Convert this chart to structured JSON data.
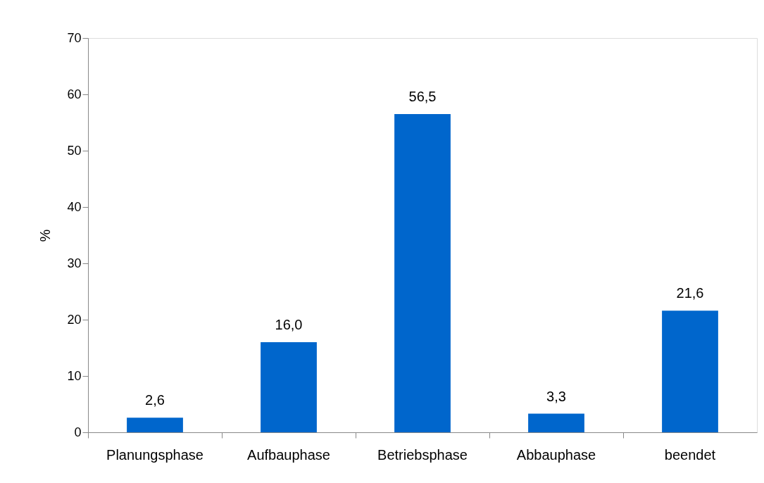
{
  "chart_data": {
    "type": "bar",
    "ylabel": "%",
    "categories": [
      "Planungsphase",
      "Aufbauphase",
      "Betriebsphase",
      "Abbauphase",
      "beendet"
    ],
    "values": [
      2.6,
      16.0,
      56.5,
      3.3,
      21.6
    ],
    "value_labels": [
      "2,6",
      "16,0",
      "56,5",
      "3,3",
      "21,6"
    ],
    "color": "#0066cc",
    "ylim": [
      0,
      70
    ],
    "yticks": [
      0,
      10,
      20,
      30,
      40,
      50,
      60,
      70
    ],
    "grid": false
  }
}
